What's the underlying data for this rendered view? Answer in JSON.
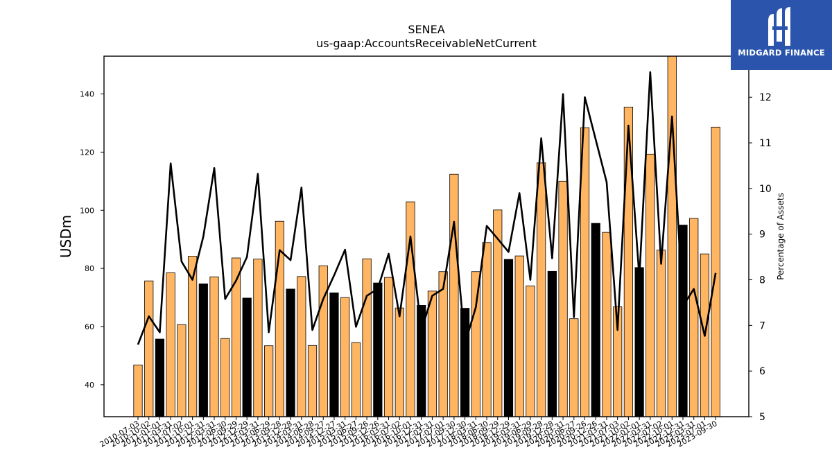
{
  "chart_data": {
    "type": "bar+line",
    "title": "SENEA",
    "subtitle": "us-gaap:AccountsReceivableNetCurrent",
    "ylabel_left": "USDm",
    "ylabel_right": "Percentage of Assets",
    "ylim_left": [
      29,
      153
    ],
    "ylim_right": [
      5,
      12.9
    ],
    "yticks_left": [
      40,
      60,
      80,
      100,
      120,
      140
    ],
    "yticks_right": [
      5,
      6,
      7,
      8,
      9,
      10,
      11,
      12
    ],
    "categories": [
      "2010-07-03",
      "2010-10-02",
      "2011-01-01",
      "2011-03-31",
      "2011-07-02",
      "2011-10-01",
      "2011-12-31",
      "2012-03-31",
      "2012-06-30",
      "2012-09-29",
      "2012-12-29",
      "2013-03-31",
      "2013-06-29",
      "2013-09-28",
      "2013-12-28",
      "2014-03-31",
      "2014-06-28",
      "2014-09-27",
      "2014-12-27",
      "2015-03-31",
      "2015-06-27",
      "2015-09-26",
      "2015-12-26",
      "2016-03-31",
      "2016-07-02",
      "2016-10-01",
      "2016-12-31",
      "2017-03-31",
      "2017-07-01",
      "2017-09-30",
      "2017-12-30",
      "2018-03-31",
      "2018-06-30",
      "2018-09-29",
      "2018-12-29",
      "2019-03-31",
      "2019-06-29",
      "2019-09-28",
      "2019-12-28",
      "2020-03-31",
      "2020-06-27",
      "2020-09-26",
      "2020-12-26",
      "2021-03-31",
      "2021-07-03",
      "2021-10-02",
      "2022-01-01",
      "2022-03-31",
      "2022-07-02",
      "2022-10-01",
      "2022-12-31",
      "2023-03-31",
      "2023-07-01",
      "2023-09-30"
    ],
    "values": [
      46.8,
      75.7,
      55.7,
      78.5,
      60.7,
      84.2,
      74.7,
      77.1,
      55.9,
      83.6,
      69.8,
      83.2,
      53.4,
      96.2,
      72.9,
      77.2,
      53.5,
      80.9,
      71.6,
      70.0,
      54.5,
      83.3,
      75.0,
      76.9,
      66.4,
      102.9,
      67.3,
      72.2,
      78.9,
      112.4,
      66.3,
      78.9,
      88.9,
      100.1,
      83.1,
      84.3,
      74.0,
      116.3,
      79.0,
      110.0,
      62.7,
      128.4,
      95.5,
      92.4,
      66.8,
      135.5,
      80.3,
      119.3,
      86.3,
      153.0,
      94.9,
      97.2,
      85.0,
      128.6
    ],
    "highlight": [
      false,
      false,
      true,
      false,
      false,
      false,
      true,
      false,
      false,
      false,
      true,
      false,
      false,
      false,
      true,
      false,
      false,
      false,
      true,
      false,
      false,
      false,
      true,
      false,
      false,
      false,
      true,
      false,
      false,
      false,
      true,
      false,
      false,
      false,
      true,
      false,
      false,
      false,
      true,
      false,
      false,
      false,
      true,
      false,
      false,
      false,
      true,
      false,
      false,
      false,
      true,
      false,
      false,
      false
    ],
    "percent_x": [
      0,
      1,
      2,
      3,
      4,
      5,
      6,
      7,
      8,
      9,
      10,
      11,
      12,
      13,
      14,
      15,
      16,
      17,
      18,
      19,
      20,
      21,
      22,
      23,
      24,
      25,
      26,
      27,
      28,
      29,
      30,
      31,
      32,
      33,
      34,
      35,
      36,
      37,
      38,
      39,
      40,
      41,
      43,
      44,
      45,
      46,
      47,
      48,
      49,
      50,
      51,
      52,
      53
    ],
    "percent_values": [
      6.58,
      7.2,
      6.85,
      10.55,
      8.4,
      8.0,
      8.95,
      10.45,
      7.58,
      7.98,
      8.5,
      10.32,
      6.85,
      8.65,
      8.43,
      10.02,
      6.9,
      7.58,
      8.1,
      8.66,
      6.97,
      7.65,
      7.8,
      8.57,
      7.2,
      8.95,
      6.9,
      7.65,
      7.8,
      9.27,
      6.6,
      7.4,
      9.18,
      8.9,
      8.61,
      9.9,
      8.0,
      11.1,
      8.47,
      12.07,
      7.18,
      12.0,
      10.14,
      6.9,
      11.38,
      8.05,
      12.55,
      8.35,
      11.58,
      7.42,
      7.8,
      6.77,
      8.15
    ],
    "colors": {
      "bar": "#ffb562",
      "bar_highlight": "#000000",
      "bar_edge": "#000000",
      "line": "#000000"
    },
    "grid": false
  },
  "logo": {
    "text": "MIDGARD FINANCE",
    "background": "#2b55ad"
  }
}
